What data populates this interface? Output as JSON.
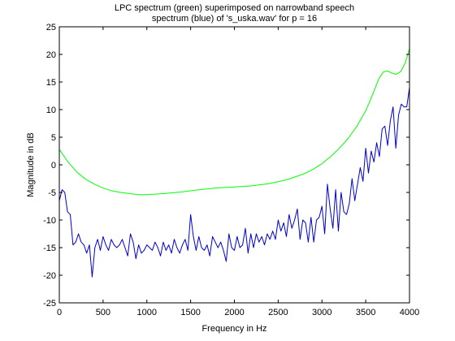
{
  "chart_data": {
    "type": "line",
    "title": [
      "LPC spectrum (green) superimposed on narrowband speech",
      "spectrum (blue) of 's_uska.wav' for p = 16"
    ],
    "xlabel": "Frequency in Hz",
    "ylabel": "Magnitude in dB",
    "xlim": [
      0,
      4000
    ],
    "ylim": [
      -25,
      25
    ],
    "xticks": [
      0,
      500,
      1000,
      1500,
      2000,
      2500,
      3000,
      3500,
      4000
    ],
    "yticks": [
      -25,
      -20,
      -15,
      -10,
      -5,
      0,
      5,
      10,
      15,
      20,
      25
    ],
    "grid": false,
    "series": [
      {
        "color": "#00ff00",
        "x": [
          0,
          100,
          200,
          300,
          400,
          500,
          600,
          700,
          800,
          900,
          1000,
          1200,
          1400,
          1600,
          1800,
          2000,
          2200,
          2400,
          2600,
          2800,
          2900,
          3000,
          3100,
          3200,
          3300,
          3400,
          3500,
          3550,
          3600,
          3650,
          3700,
          3750,
          3800,
          3850,
          3900,
          3950,
          4000
        ],
        "y": [
          2.8,
          0.5,
          -1.3,
          -2.6,
          -3.5,
          -4.2,
          -4.7,
          -5.0,
          -5.2,
          -5.4,
          -5.4,
          -5.2,
          -4.9,
          -4.5,
          -4.2,
          -4.0,
          -3.8,
          -3.4,
          -2.7,
          -1.6,
          -0.8,
          0.2,
          1.5,
          3.0,
          4.8,
          7.0,
          9.8,
          11.6,
          13.6,
          15.6,
          16.8,
          17.0,
          16.6,
          16.4,
          16.9,
          18.4,
          21.0
        ]
      },
      {
        "color": "#0000cc",
        "x": [
          0,
          31.25,
          62.5,
          93.75,
          125,
          156.25,
          187.5,
          218.75,
          250,
          281.25,
          312.5,
          343.75,
          375,
          406.25,
          437.5,
          468.75,
          500,
          531.25,
          562.5,
          593.75,
          625,
          656.25,
          687.5,
          718.75,
          750,
          781.25,
          812.5,
          843.75,
          875,
          906.25,
          937.5,
          968.75,
          1000,
          1031.25,
          1062.5,
          1093.75,
          1125,
          1156.25,
          1187.5,
          1218.75,
          1250,
          1281.25,
          1312.5,
          1343.75,
          1375,
          1406.25,
          1437.5,
          1468.75,
          1500,
          1531.25,
          1562.5,
          1593.75,
          1625,
          1656.25,
          1687.5,
          1718.75,
          1750,
          1781.25,
          1812.5,
          1843.75,
          1875,
          1906.25,
          1937.5,
          1968.75,
          2000,
          2031.25,
          2062.5,
          2093.75,
          2125,
          2156.25,
          2187.5,
          2218.75,
          2250,
          2281.25,
          2312.5,
          2343.75,
          2375,
          2406.25,
          2437.5,
          2468.75,
          2500,
          2531.25,
          2562.5,
          2593.75,
          2625,
          2656.25,
          2687.5,
          2718.75,
          2750,
          2781.25,
          2812.5,
          2843.75,
          2875,
          2906.25,
          2937.5,
          2968.75,
          3000,
          3031.25,
          3062.5,
          3093.75,
          3125,
          3156.25,
          3187.5,
          3218.75,
          3250,
          3281.25,
          3312.5,
          3343.75,
          3375,
          3406.25,
          3437.5,
          3468.75,
          3500,
          3531.25,
          3562.5,
          3593.75,
          3625,
          3656.25,
          3687.5,
          3718.75,
          3750,
          3781.25,
          3812.5,
          3843.75,
          3875,
          3906.25,
          3937.5,
          3968.75,
          4000
        ],
        "y": [
          -6.5,
          -4.5,
          -5.0,
          -8.5,
          -9.0,
          -14.5,
          -14.0,
          -12.5,
          -14.0,
          -14.5,
          -16.0,
          -14.5,
          -20.3,
          -15.0,
          -13.5,
          -15.5,
          -13.0,
          -14.5,
          -15.5,
          -13.5,
          -14.5,
          -15.0,
          -14.5,
          -13.5,
          -15.0,
          -16.5,
          -12.5,
          -14.0,
          -17.0,
          -14.5,
          -16.0,
          -15.5,
          -14.5,
          -15.0,
          -15.5,
          -14.0,
          -15.0,
          -16.5,
          -14.0,
          -15.5,
          -14.5,
          -16.0,
          -13.5,
          -15.0,
          -16.0,
          -14.5,
          -13.5,
          -15.5,
          -9.0,
          -13.0,
          -15.5,
          -13.0,
          -15.0,
          -15.5,
          -14.5,
          -16.5,
          -13.0,
          -14.0,
          -15.0,
          -14.0,
          -15.5,
          -17.5,
          -12.5,
          -15.0,
          -15.5,
          -13.0,
          -15.0,
          -14.5,
          -11.5,
          -16.0,
          -12.5,
          -15.0,
          -12.5,
          -14.0,
          -13.0,
          -14.5,
          -12.5,
          -13.5,
          -12.0,
          -13.5,
          -10.0,
          -12.0,
          -10.5,
          -13.0,
          -9.0,
          -11.5,
          -10.0,
          -8.0,
          -13.5,
          -10.0,
          -10.5,
          -14.0,
          -9.5,
          -14.0,
          -10.0,
          -9.5,
          -7.5,
          -12.5,
          -3.5,
          -8.0,
          -11.5,
          -4.5,
          -12.0,
          -5.0,
          -8.5,
          -9.0,
          -7.0,
          -2.5,
          -6.5,
          -3.5,
          -0.5,
          -3.0,
          3.0,
          -1.5,
          2.5,
          0.5,
          4.0,
          1.5,
          6.5,
          7.0,
          3.5,
          8.0,
          10.5,
          3.0,
          9.0,
          11.0,
          10.5,
          10.5,
          14.0
        ]
      }
    ]
  }
}
